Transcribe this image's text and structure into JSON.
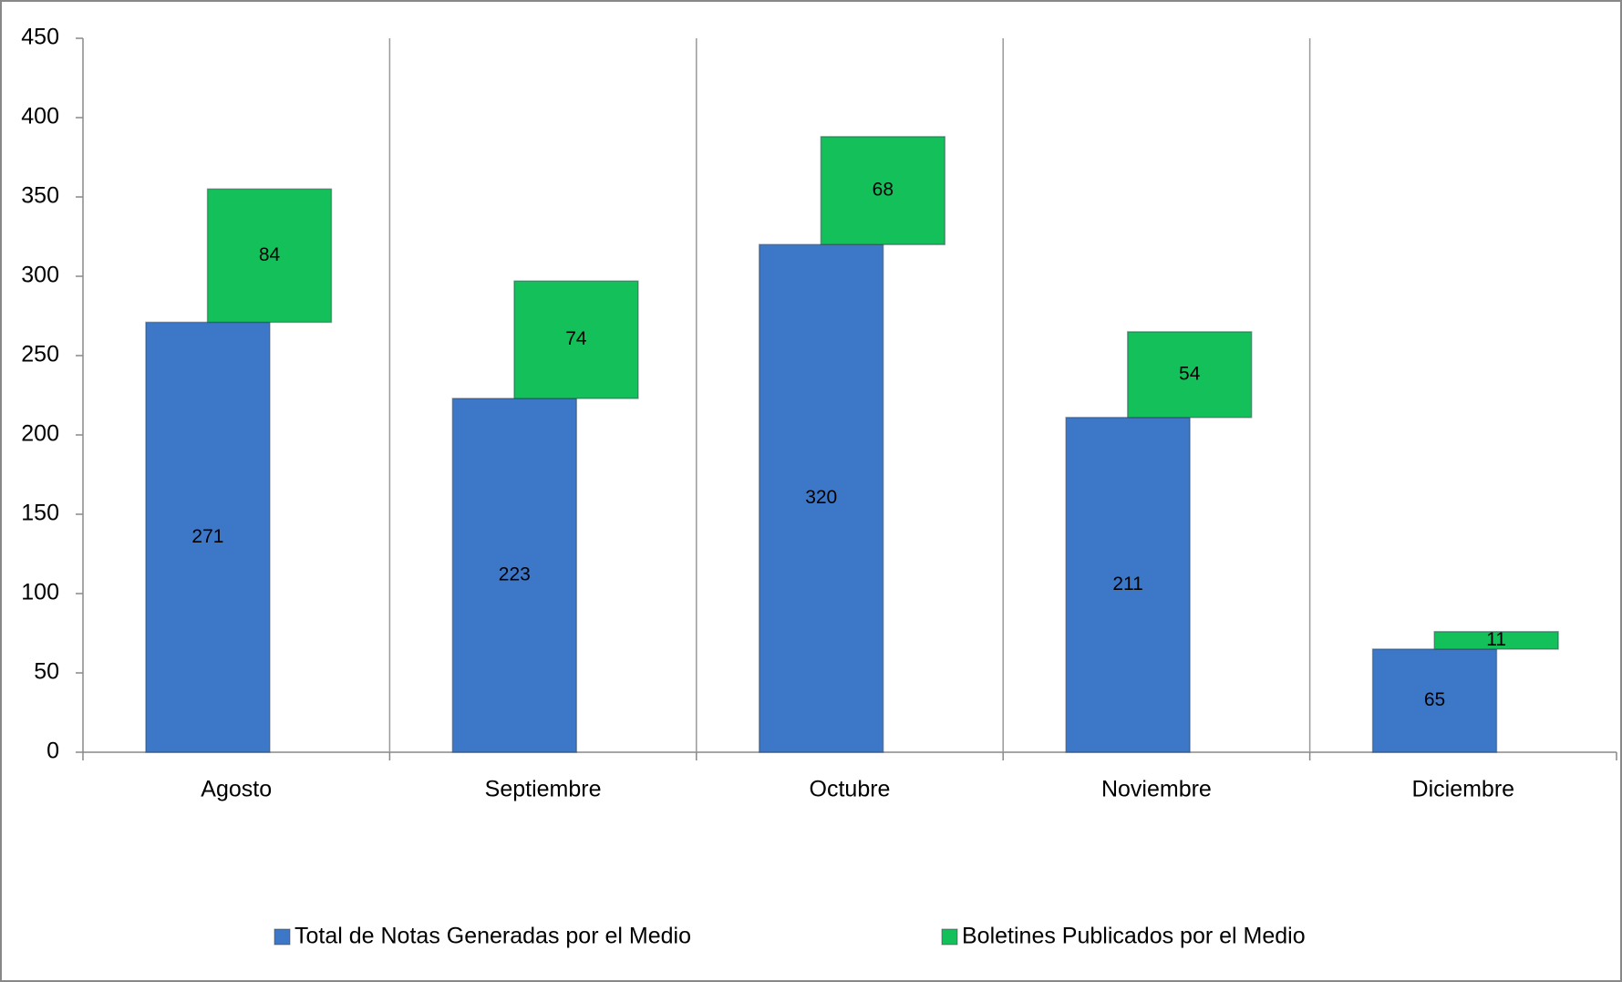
{
  "chart_data": {
    "type": "bar",
    "stacked": true,
    "categories": [
      "Agosto",
      "Septiembre",
      "Octubre",
      "Noviembre",
      "Diciembre"
    ],
    "series": [
      {
        "name": "Total de Notas Generadas por el Medio",
        "color": "#3d78c8",
        "values": [
          271,
          223,
          320,
          211,
          65
        ]
      },
      {
        "name": "Boletines Publicados por el Medio",
        "color": "#14c05a",
        "values": [
          84,
          74,
          68,
          54,
          11
        ]
      }
    ],
    "ylim": [
      0,
      450
    ],
    "yticks": [
      0,
      50,
      100,
      150,
      200,
      250,
      300,
      350,
      400,
      450
    ],
    "grid": "x",
    "legend": "bottom"
  }
}
